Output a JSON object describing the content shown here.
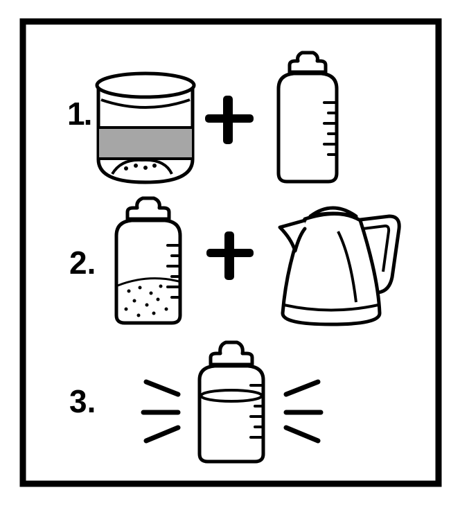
{
  "steps": [
    {
      "label": "1."
    },
    {
      "label": "2."
    },
    {
      "label": "3."
    }
  ],
  "colors": {
    "ink": "#000000",
    "paper": "#ffffff",
    "powder_band": "#a6a6a6"
  },
  "icons": [
    "formula-tin-icon",
    "plus-icon",
    "baby-bottle-icon",
    "kettle-icon",
    "shake-lines-icon"
  ]
}
